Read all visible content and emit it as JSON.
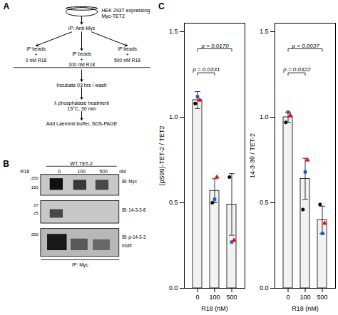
{
  "chart_data": [
    {
      "type": "diagram",
      "title": "A",
      "annotations": [
        "HEK 293T expressing",
        "Myc-TET2",
        "IP: Anti-Myc",
        "IP beads",
        "+",
        "0 nM R18",
        "IP beads",
        "+",
        "100 nM R18",
        "IP beads",
        "+",
        "500 nM R18",
        "Incubate 03 hrs / wash",
        "λ phosphatase treatment",
        "15°C, 30 min",
        "Add Laemmli buffer, SDS-PAGE"
      ]
    },
    {
      "type": "diagram",
      "title": "B",
      "annotations": [
        "WT TET-2",
        "R18",
        "0",
        "100",
        "500",
        "nM",
        "IB: Myc",
        "250",
        "150",
        "IB: 14-3-3-θ",
        "37",
        "25",
        "IB: p-14-3-3",
        "motif",
        "250",
        "IP: Myc"
      ]
    },
    {
      "type": "bar",
      "title": "C",
      "categories": [
        "0",
        "100",
        "500"
      ],
      "values": [
        1.1,
        0.57,
        0.49
      ],
      "errors": [
        0.05,
        0.07,
        0.18
      ],
      "color": "#f2f2f2",
      "xlabel": "R18 (nM)",
      "ylabel": "(pS99)-TET-2 / TET2",
      "ylim": [
        0.0,
        1.55
      ],
      "yticks": [
        {
          "value": 0.0,
          "label": "0.0"
        },
        0.5,
        {
          "value": 1.0,
          "label": "1.0"
        },
        1.5
      ],
      "replicates": [
        {
          "color": "black",
          "marker": "circle",
          "values": [
            1.08,
            0.5,
            0.65
          ]
        },
        {
          "color": "#2255cc",
          "marker": "square",
          "values": [
            1.12,
            0.52,
            0.27
          ]
        },
        {
          "color": "red",
          "marker": "triangle",
          "values": [
            1.1,
            0.65,
            0.28
          ]
        }
      ],
      "comparisons": [
        {
          "from": "0",
          "to": "100",
          "y": 1.26,
          "text": "p = 0.0331"
        },
        {
          "from": "0",
          "to": "500",
          "y": 1.4,
          "text": "p = 0.0170"
        }
      ]
    },
    {
      "type": "bar",
      "categories": [
        "0",
        "100",
        "500"
      ],
      "values": [
        1.0,
        0.64,
        0.4
      ],
      "errors": [
        0.03,
        0.12,
        0.08
      ],
      "color": "#f2f2f2",
      "xlabel": "R18 (nM)",
      "ylabel": "14-3-3θ / TET-2",
      "ylim": [
        0.0,
        1.55
      ],
      "yticks": [
        {
          "value": 0.0,
          "label": "0.0"
        },
        0.5,
        {
          "value": 1.0,
          "label": "1.0"
        },
        1.5
      ],
      "replicates": [
        {
          "color": "black",
          "marker": "circle",
          "values": [
            0.97,
            0.46,
            0.49
          ]
        },
        {
          "color": "#2255cc",
          "marker": "square",
          "values": [
            1.03,
            0.68,
            0.32
          ]
        },
        {
          "color": "red",
          "marker": "triangle",
          "values": [
            1.01,
            0.75,
            0.38
          ]
        }
      ],
      "comparisons": [
        {
          "from": "0",
          "to": "100",
          "y": 1.26,
          "text": "p = 0.0322"
        },
        {
          "from": "0",
          "to": "500",
          "y": 1.4,
          "text": "p = 0.0037"
        }
      ]
    }
  ]
}
